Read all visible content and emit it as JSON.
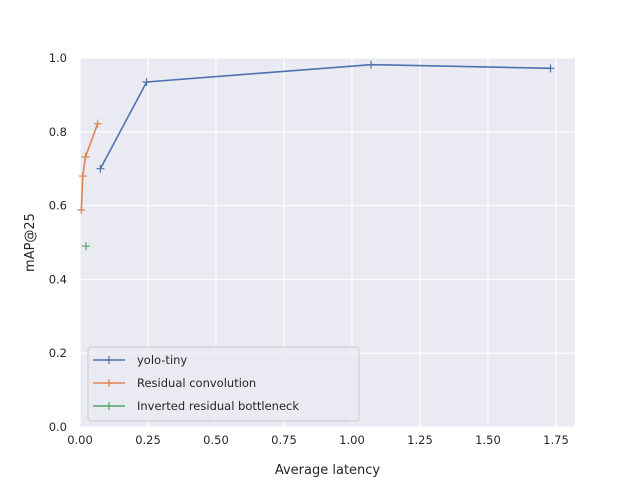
{
  "chart_data": {
    "type": "line",
    "xlabel": "Average latency",
    "ylabel": "mAP@25",
    "xlim": [
      0.0,
      1.82
    ],
    "ylim": [
      0.0,
      1.0
    ],
    "xticks": [
      0.0,
      0.25,
      0.5,
      0.75,
      1.0,
      1.25,
      1.5,
      1.75
    ],
    "xtick_labels": [
      "0.00",
      "0.25",
      "0.50",
      "0.75",
      "1.00",
      "1.25",
      "1.50",
      "1.75"
    ],
    "yticks": [
      0.0,
      0.2,
      0.4,
      0.6,
      0.8,
      1.0
    ],
    "ytick_labels": [
      "0.0",
      "0.2",
      "0.4",
      "0.6",
      "0.8",
      "1.0"
    ],
    "grid": true,
    "legend_position": "lower-left",
    "marker": "+",
    "series": [
      {
        "name": "yolo-tiny",
        "color": "#4c72b0",
        "x": [
          0.075,
          0.245,
          1.07,
          1.73
        ],
        "y": [
          0.7,
          0.935,
          0.982,
          0.972
        ]
      },
      {
        "name": "Residual convolution",
        "color": "#dd8452",
        "x": [
          0.005,
          0.01,
          0.02,
          0.065
        ],
        "y": [
          0.588,
          0.68,
          0.732,
          0.822
        ]
      },
      {
        "name": "Inverted residual bottleneck",
        "color": "#55a868",
        "x": [
          0.022
        ],
        "y": [
          0.49
        ]
      }
    ]
  }
}
